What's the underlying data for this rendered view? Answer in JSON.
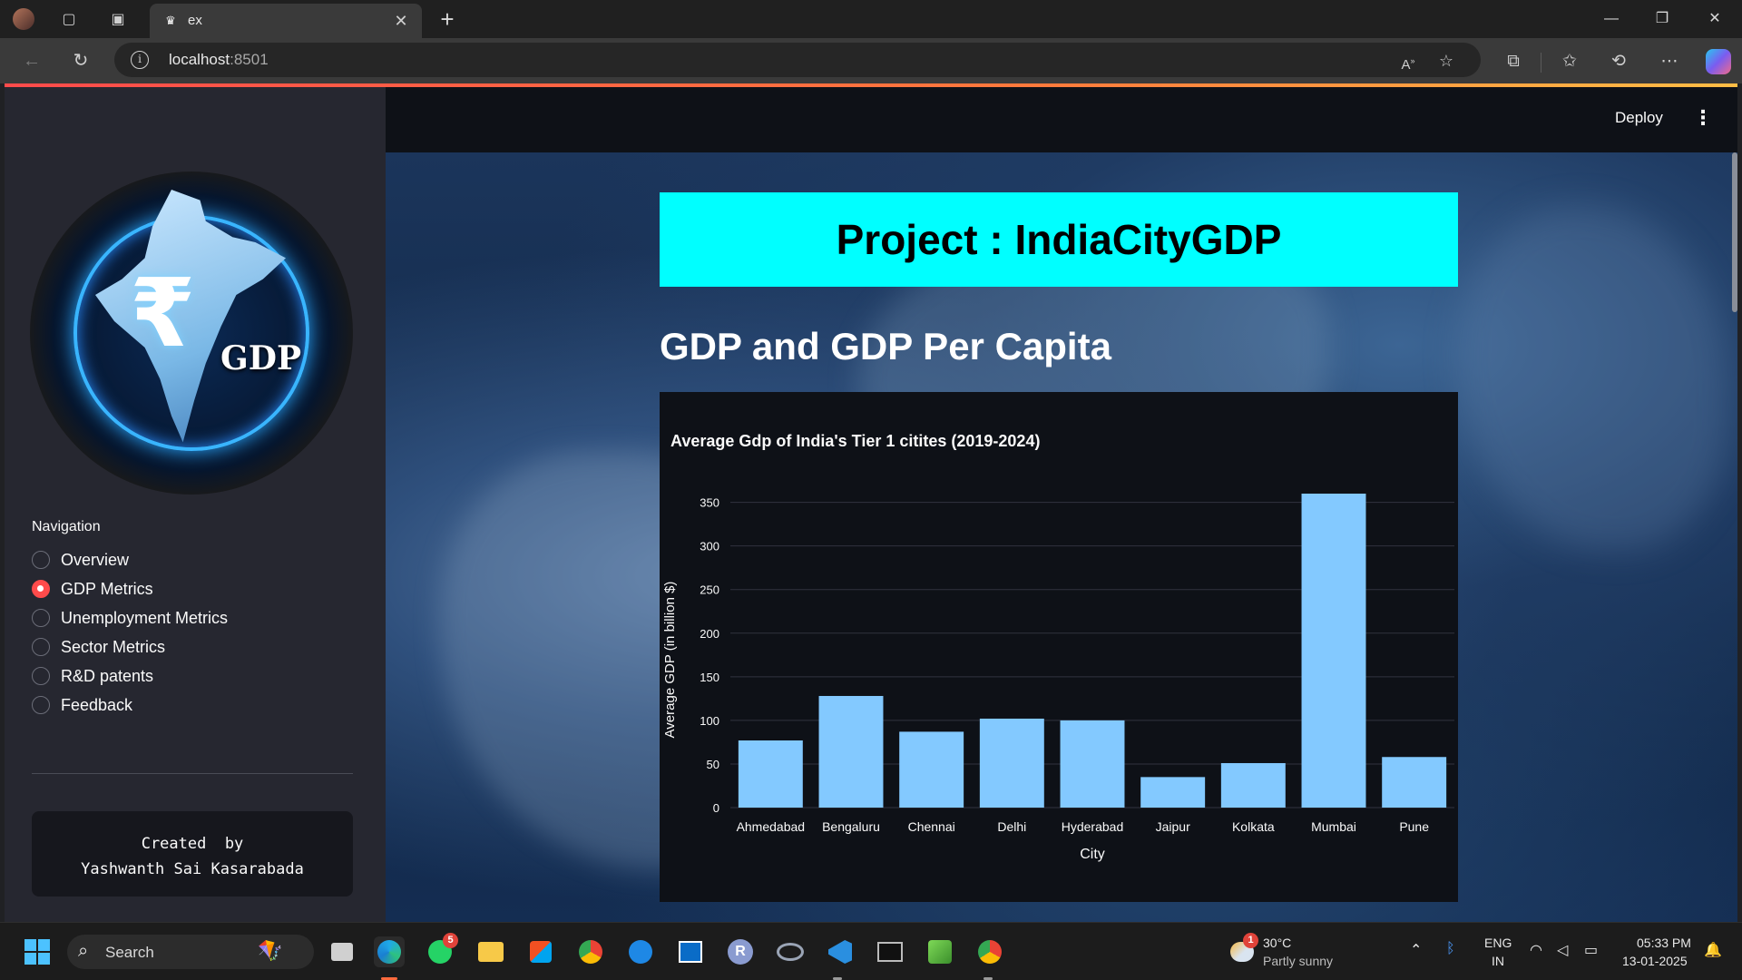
{
  "browser": {
    "tab_title": "ex",
    "address_host": "localhost",
    "address_port": ":8501"
  },
  "sidebar": {
    "logo_text": "GDP",
    "logo_symbol": "₹",
    "nav_title": "Navigation",
    "items": [
      {
        "label": "Overview",
        "selected": false
      },
      {
        "label": "GDP Metrics",
        "selected": true
      },
      {
        "label": "Unemployment Metrics",
        "selected": false
      },
      {
        "label": "Sector Metrics",
        "selected": false
      },
      {
        "label": "R&D patents",
        "selected": false
      },
      {
        "label": "Feedback",
        "selected": false
      }
    ],
    "credit_line1": "Created  by",
    "credit_line2": "Yashwanth Sai Kasarabada"
  },
  "header": {
    "deploy_label": "Deploy",
    "menu_icon": "⋮"
  },
  "main": {
    "banner_title": "Project : IndiaCityGDP",
    "subheading": "GDP and GDP Per Capita"
  },
  "chart_data": {
    "type": "bar",
    "title": "Average Gdp of India's Tier 1 citites (2019-2024)",
    "xlabel": "City",
    "ylabel": "Average GDP (in billion $)",
    "categories": [
      "Ahmedabad",
      "Bengaluru",
      "Chennai",
      "Delhi",
      "Hyderabad",
      "Jaipur",
      "Kolkata",
      "Mumbai",
      "Pune"
    ],
    "values": [
      77,
      128,
      87,
      102,
      100,
      35,
      51,
      360,
      58
    ],
    "ylim": [
      0,
      360
    ],
    "yticks": [
      0,
      50,
      100,
      150,
      200,
      250,
      300,
      350
    ],
    "grid": true,
    "bar_color": "#83c9ff"
  },
  "taskbar": {
    "search_label": "Search",
    "whatsapp_badge": "5",
    "weather_badge": "1",
    "weather_temp": "30°C",
    "weather_desc": "Partly sunny",
    "lang_line1": "ENG",
    "lang_line2": "IN",
    "time": "05:33 PM",
    "date": "13-01-2025"
  }
}
